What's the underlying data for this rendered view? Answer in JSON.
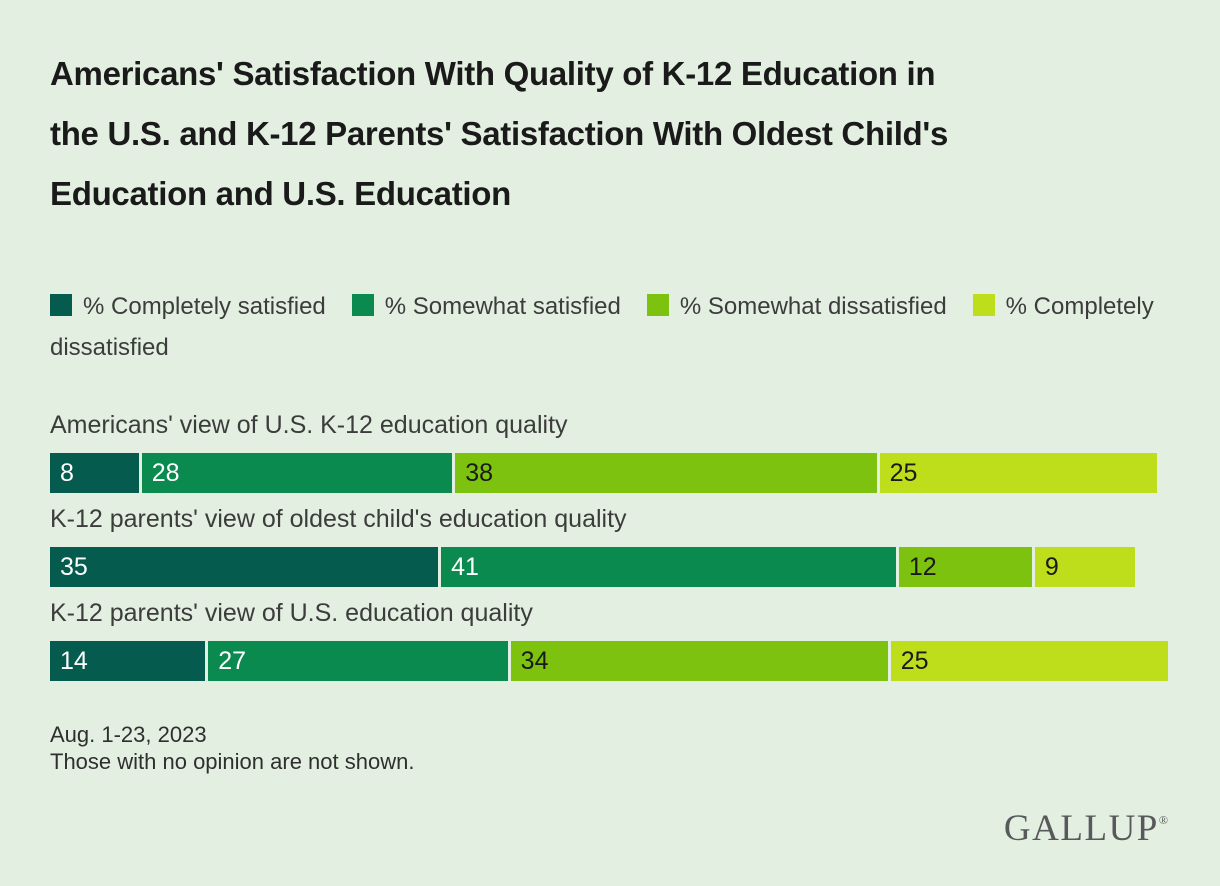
{
  "theme": {
    "background": "#E3F0E1",
    "title_color": "#1A1A1A",
    "text_color": "#3C3C3C",
    "logo_color": "#57595B"
  },
  "title": {
    "full": "Americans' Satisfaction With Quality of K-12 Education in the U.S. and K-12 Parents' Satisfaction With Oldest Child's Education and U.S. Education",
    "lines": [
      "Americans' Satisfaction With Quality of K-12 Education in",
      "the U.S. and K-12 Parents' Satisfaction With Oldest Child's",
      "Education and U.S. Education"
    ]
  },
  "legend": [
    {
      "label": "% Completely satisfied",
      "color": "#045B4E"
    },
    {
      "label": "% Somewhat satisfied",
      "color": "#0B8A4F"
    },
    {
      "label": "% Somewhat dissatisfied",
      "color": "#7CC20E"
    },
    {
      "label": "% Completely dissatisfied",
      "color": "#BEDD1A"
    }
  ],
  "chart_data": {
    "type": "bar",
    "stacked": true,
    "orientation": "horizontal",
    "legend_position": "top",
    "data_labels": true,
    "value_unit": "percent",
    "xlim": [
      0,
      100
    ],
    "categories": [
      "Americans' view of U.S. K-12 education quality",
      "K-12 parents' view of oldest child's education quality",
      "K-12 parents' view of U.S. education quality"
    ],
    "series": [
      {
        "name": "% Completely satisfied",
        "color": "#045B4E",
        "label_color": "#FFFFFF",
        "values": [
          8,
          35,
          14
        ]
      },
      {
        "name": "% Somewhat satisfied",
        "color": "#0B8A4F",
        "label_color": "#FFFFFF",
        "values": [
          28,
          41,
          27
        ]
      },
      {
        "name": "% Somewhat dissatisfied",
        "color": "#7CC20E",
        "label_color": "#1A1A1A",
        "values": [
          38,
          12,
          34
        ]
      },
      {
        "name": "% Completely dissatisfied",
        "color": "#BEDD1A",
        "label_color": "#1A1A1A",
        "values": [
          25,
          9,
          25
        ]
      }
    ]
  },
  "footer": {
    "date": "Aug. 1-23, 2023",
    "note": "Those with no opinion are not shown."
  },
  "branding": {
    "logo": "GALLUP",
    "trademark": "®"
  }
}
